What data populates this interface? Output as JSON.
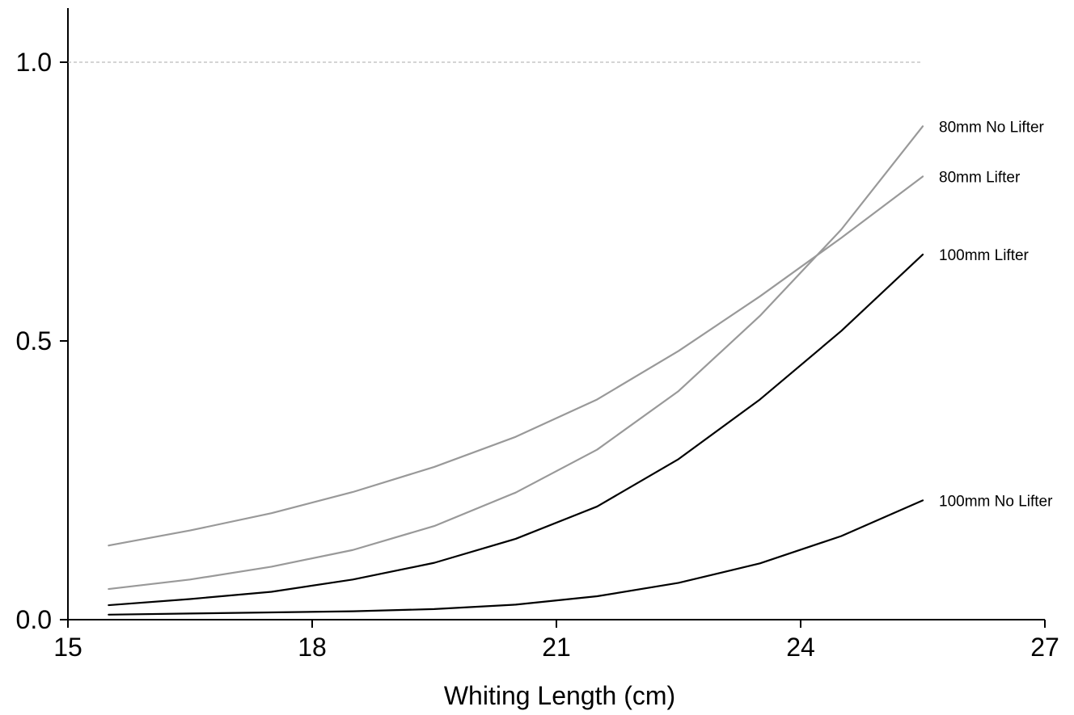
{
  "chart_data": {
    "type": "line",
    "title": "",
    "xlabel": "Whiting Length (cm)",
    "ylabel": "",
    "xlim": [
      15,
      27
    ],
    "ylim": [
      0,
      1.1
    ],
    "xticks": [
      15,
      18,
      21,
      24,
      27
    ],
    "xtick_labels": [
      "15",
      "18",
      "21",
      "24",
      "27"
    ],
    "yticks": [
      0,
      0.5,
      1.0
    ],
    "ytick_labels": [
      "0.0",
      "0.5",
      "1.0"
    ],
    "reference_line": {
      "y": 1.0,
      "style": "dashed",
      "color": "#aaaaaa"
    },
    "x": [
      15.5,
      16.5,
      17.5,
      18.5,
      19.5,
      20.5,
      21.5,
      22.5,
      23.5,
      24.5,
      25.5
    ],
    "series": [
      {
        "name": "80mm No Lifter",
        "color": "#999999",
        "values": [
          0.055,
          0.072,
          0.095,
          0.125,
          0.168,
          0.228,
          0.305,
          0.41,
          0.545,
          0.7,
          0.885
        ]
      },
      {
        "name": "80mm Lifter",
        "color": "#999999",
        "values": [
          0.133,
          0.16,
          0.191,
          0.229,
          0.274,
          0.328,
          0.395,
          0.482,
          0.58,
          0.685,
          0.795
        ]
      },
      {
        "name": "100mm Lifter",
        "color": "#000000",
        "values": [
          0.026,
          0.037,
          0.05,
          0.072,
          0.102,
          0.145,
          0.203,
          0.288,
          0.395,
          0.518,
          0.655
        ]
      },
      {
        "name": "100mm No Lifter",
        "color": "#000000",
        "values": [
          0.009,
          0.011,
          0.013,
          0.015,
          0.019,
          0.027,
          0.042,
          0.066,
          0.101,
          0.15,
          0.214
        ]
      }
    ]
  }
}
